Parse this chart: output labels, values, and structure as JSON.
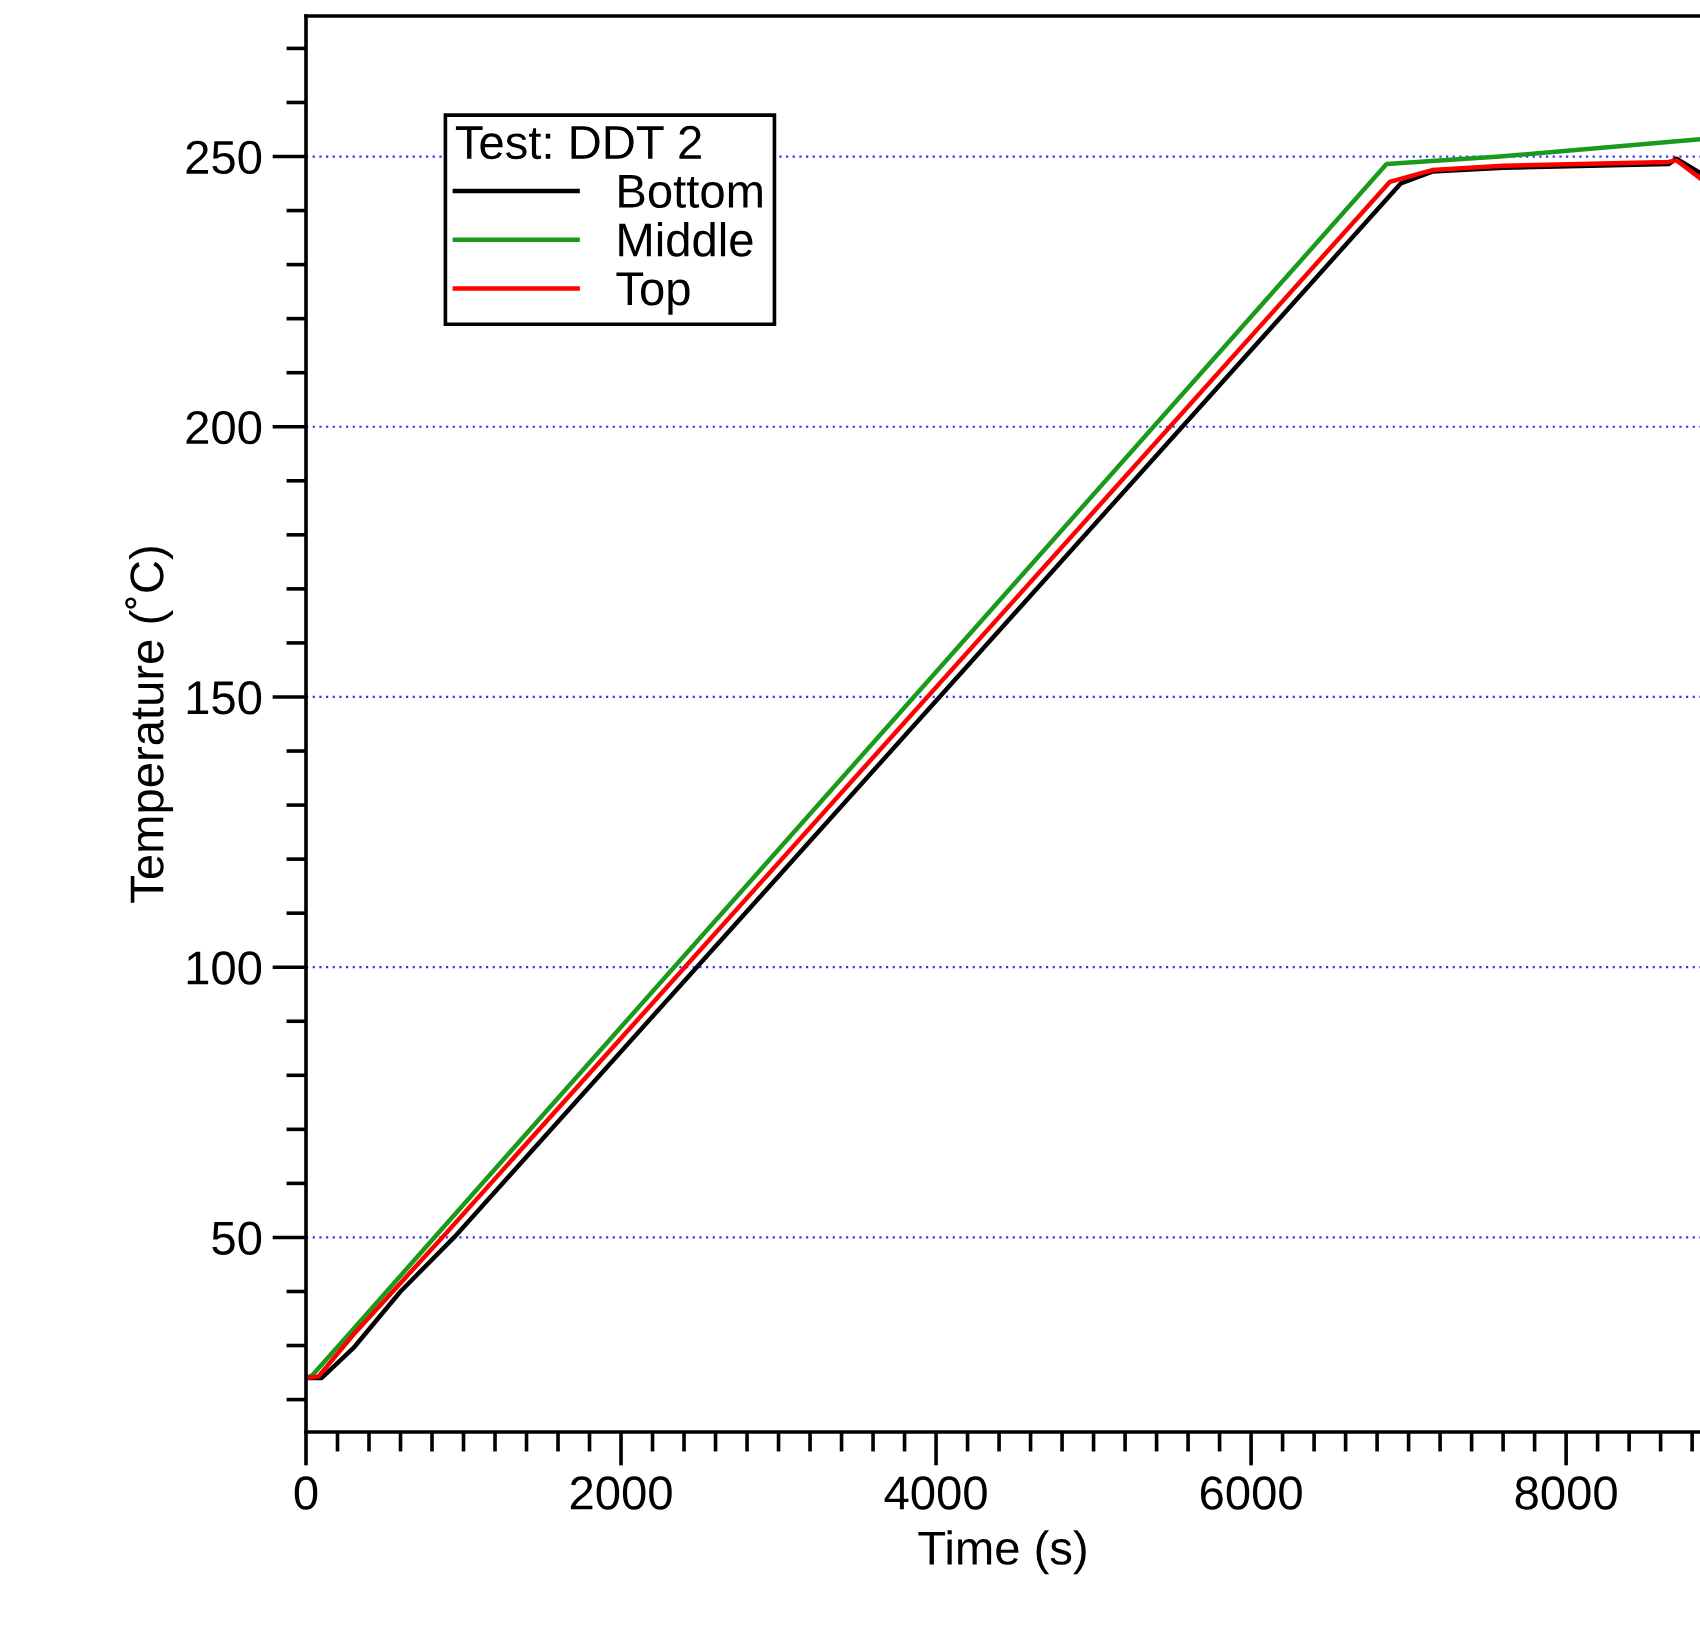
{
  "chart_data": {
    "type": "line",
    "xlabel": "Time (s)",
    "ylabel": "Temperature (˚C)",
    "legend_title": "Test: DDT 2",
    "legend": "top left",
    "grid": "y",
    "line_style": "solid",
    "marker": "none",
    "xlim": [
      0,
      8850
    ],
    "ylim": [
      14,
      276
    ],
    "xticks": [
      0,
      {
        "value": 200,
        "label": null
      },
      {
        "value": 400,
        "label": null
      },
      {
        "value": 600,
        "label": null
      },
      {
        "value": 800,
        "label": null
      },
      {
        "value": 1000,
        "label": null
      },
      {
        "value": 1200,
        "label": null
      },
      {
        "value": 1400,
        "label": null
      },
      {
        "value": 1600,
        "label": null
      },
      {
        "value": 1800,
        "label": null
      },
      2000,
      {
        "value": 2200,
        "label": null
      },
      {
        "value": 2400,
        "label": null
      },
      {
        "value": 2600,
        "label": null
      },
      {
        "value": 2800,
        "label": null
      },
      {
        "value": 3000,
        "label": null
      },
      {
        "value": 3200,
        "label": null
      },
      {
        "value": 3400,
        "label": null
      },
      {
        "value": 3600,
        "label": null
      },
      {
        "value": 3800,
        "label": null
      },
      4000,
      {
        "value": 4200,
        "label": null
      },
      {
        "value": 4400,
        "label": null
      },
      {
        "value": 4600,
        "label": null
      },
      {
        "value": 4800,
        "label": null
      },
      {
        "value": 5000,
        "label": null
      },
      {
        "value": 5200,
        "label": null
      },
      {
        "value": 5400,
        "label": null
      },
      {
        "value": 5600,
        "label": null
      },
      {
        "value": 5800,
        "label": null
      },
      6000,
      {
        "value": 6200,
        "label": null
      },
      {
        "value": 6400,
        "label": null
      },
      {
        "value": 6600,
        "label": null
      },
      {
        "value": 6800,
        "label": null
      },
      {
        "value": 7000,
        "label": null
      },
      {
        "value": 7200,
        "label": null
      },
      {
        "value": 7400,
        "label": null
      },
      {
        "value": 7600,
        "label": null
      },
      {
        "value": 7800,
        "label": null
      },
      8000,
      {
        "value": 8200,
        "label": null
      },
      {
        "value": 8400,
        "label": null
      },
      {
        "value": 8600,
        "label": null
      },
      {
        "value": 8800,
        "label": null
      }
    ],
    "yticks": [
      {
        "value": 20,
        "label": null
      },
      {
        "value": 30,
        "label": null
      },
      {
        "value": 40,
        "label": null
      },
      50,
      {
        "value": 60,
        "label": null
      },
      {
        "value": 70,
        "label": null
      },
      {
        "value": 80,
        "label": null
      },
      {
        "value": 90,
        "label": null
      },
      100,
      {
        "value": 110,
        "label": null
      },
      {
        "value": 120,
        "label": null
      },
      {
        "value": 130,
        "label": null
      },
      {
        "value": 140,
        "label": null
      },
      150,
      {
        "value": 160,
        "label": null
      },
      {
        "value": 170,
        "label": null
      },
      {
        "value": 180,
        "label": null
      },
      {
        "value": 190,
        "label": null
      },
      200,
      {
        "value": 210,
        "label": null
      },
      {
        "value": 220,
        "label": null
      },
      {
        "value": 230,
        "label": null
      },
      {
        "value": 240,
        "label": null
      },
      250,
      {
        "value": 260,
        "label": null
      },
      {
        "value": 270,
        "label": null
      }
    ],
    "series": [
      {
        "name": "Bottom",
        "color": "#000000",
        "x": [
          0,
          100,
          300,
          600,
          940,
          6950,
          7150,
          7600,
          8650,
          8700,
          8850
        ],
        "values": [
          24,
          24,
          29.5,
          40,
          50,
          245,
          247.2,
          247.9,
          248.6,
          249.6,
          247
        ]
      },
      {
        "name": "Middle",
        "color": "#1a9a1a",
        "x": [
          0,
          40,
          300,
          815,
          6860,
          7580,
          8850
        ],
        "values": [
          24,
          24.5,
          33,
          50,
          248.6,
          250,
          253.2
        ]
      },
      {
        "name": "Top",
        "color": "#ff0000",
        "x": [
          0,
          80,
          300,
          865,
          6880,
          7150,
          7600,
          8650,
          8700,
          8850
        ],
        "values": [
          24,
          24.3,
          32,
          50,
          245.3,
          247.5,
          248.3,
          249,
          249.3,
          246
        ]
      }
    ]
  }
}
